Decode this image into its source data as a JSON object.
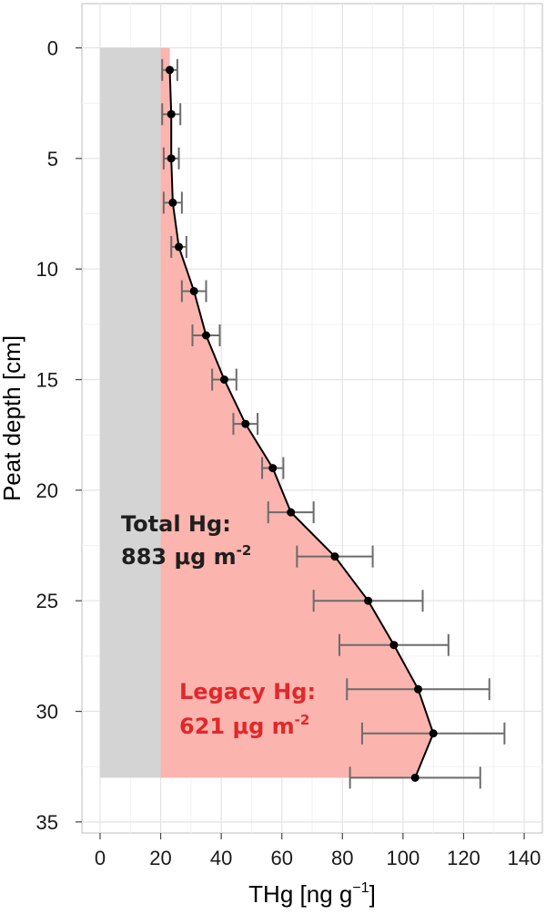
{
  "chart_data": {
    "type": "scatter",
    "orientation": "depth-profile",
    "xlabel": "THg [ng g",
    "xlabel_sup": "−1",
    "xlabel_end": "]",
    "ylabel": "Peat depth [cm]",
    "xlim": [
      -6,
      146
    ],
    "ylim": [
      35.5,
      -2
    ],
    "y_inverted": true,
    "x_ticks": [
      0,
      20,
      40,
      60,
      80,
      100,
      120,
      140
    ],
    "y_ticks": [
      0,
      5,
      10,
      15,
      20,
      25,
      30,
      35
    ],
    "grid": true,
    "series": [
      {
        "depth": [
          1,
          3,
          5,
          7,
          9,
          11,
          13,
          15,
          17,
          19,
          21,
          23,
          25,
          27,
          29,
          31,
          33
        ],
        "thg": [
          23,
          23.5,
          23.5,
          24,
          26,
          31,
          35,
          41,
          48,
          57,
          63,
          77.5,
          88.5,
          97,
          105,
          110,
          104
        ],
        "err": [
          2.5,
          3,
          2.5,
          3,
          2.5,
          4,
          4.5,
          4,
          4,
          3.5,
          7.5,
          12.5,
          18,
          18,
          23.5,
          23.5,
          21.5
        ]
      }
    ],
    "background_band": {
      "x_from": 0,
      "x_to": 20,
      "depth_from": 0,
      "depth_to": 33,
      "color": "#d4d4d4"
    },
    "legacy_fill_color": "#fbb4ae",
    "line_color": "#000000",
    "errorbar_color": "#6b6b6b",
    "annotations": [
      {
        "line1": "Total Hg:",
        "line2_value": "883 μg m",
        "line2_sup": "-2",
        "color": "#1f1f1f"
      },
      {
        "line1": "Legacy Hg:",
        "line2_value": "621 μg m",
        "line2_sup": "-2",
        "color": "#e0282b"
      }
    ]
  }
}
